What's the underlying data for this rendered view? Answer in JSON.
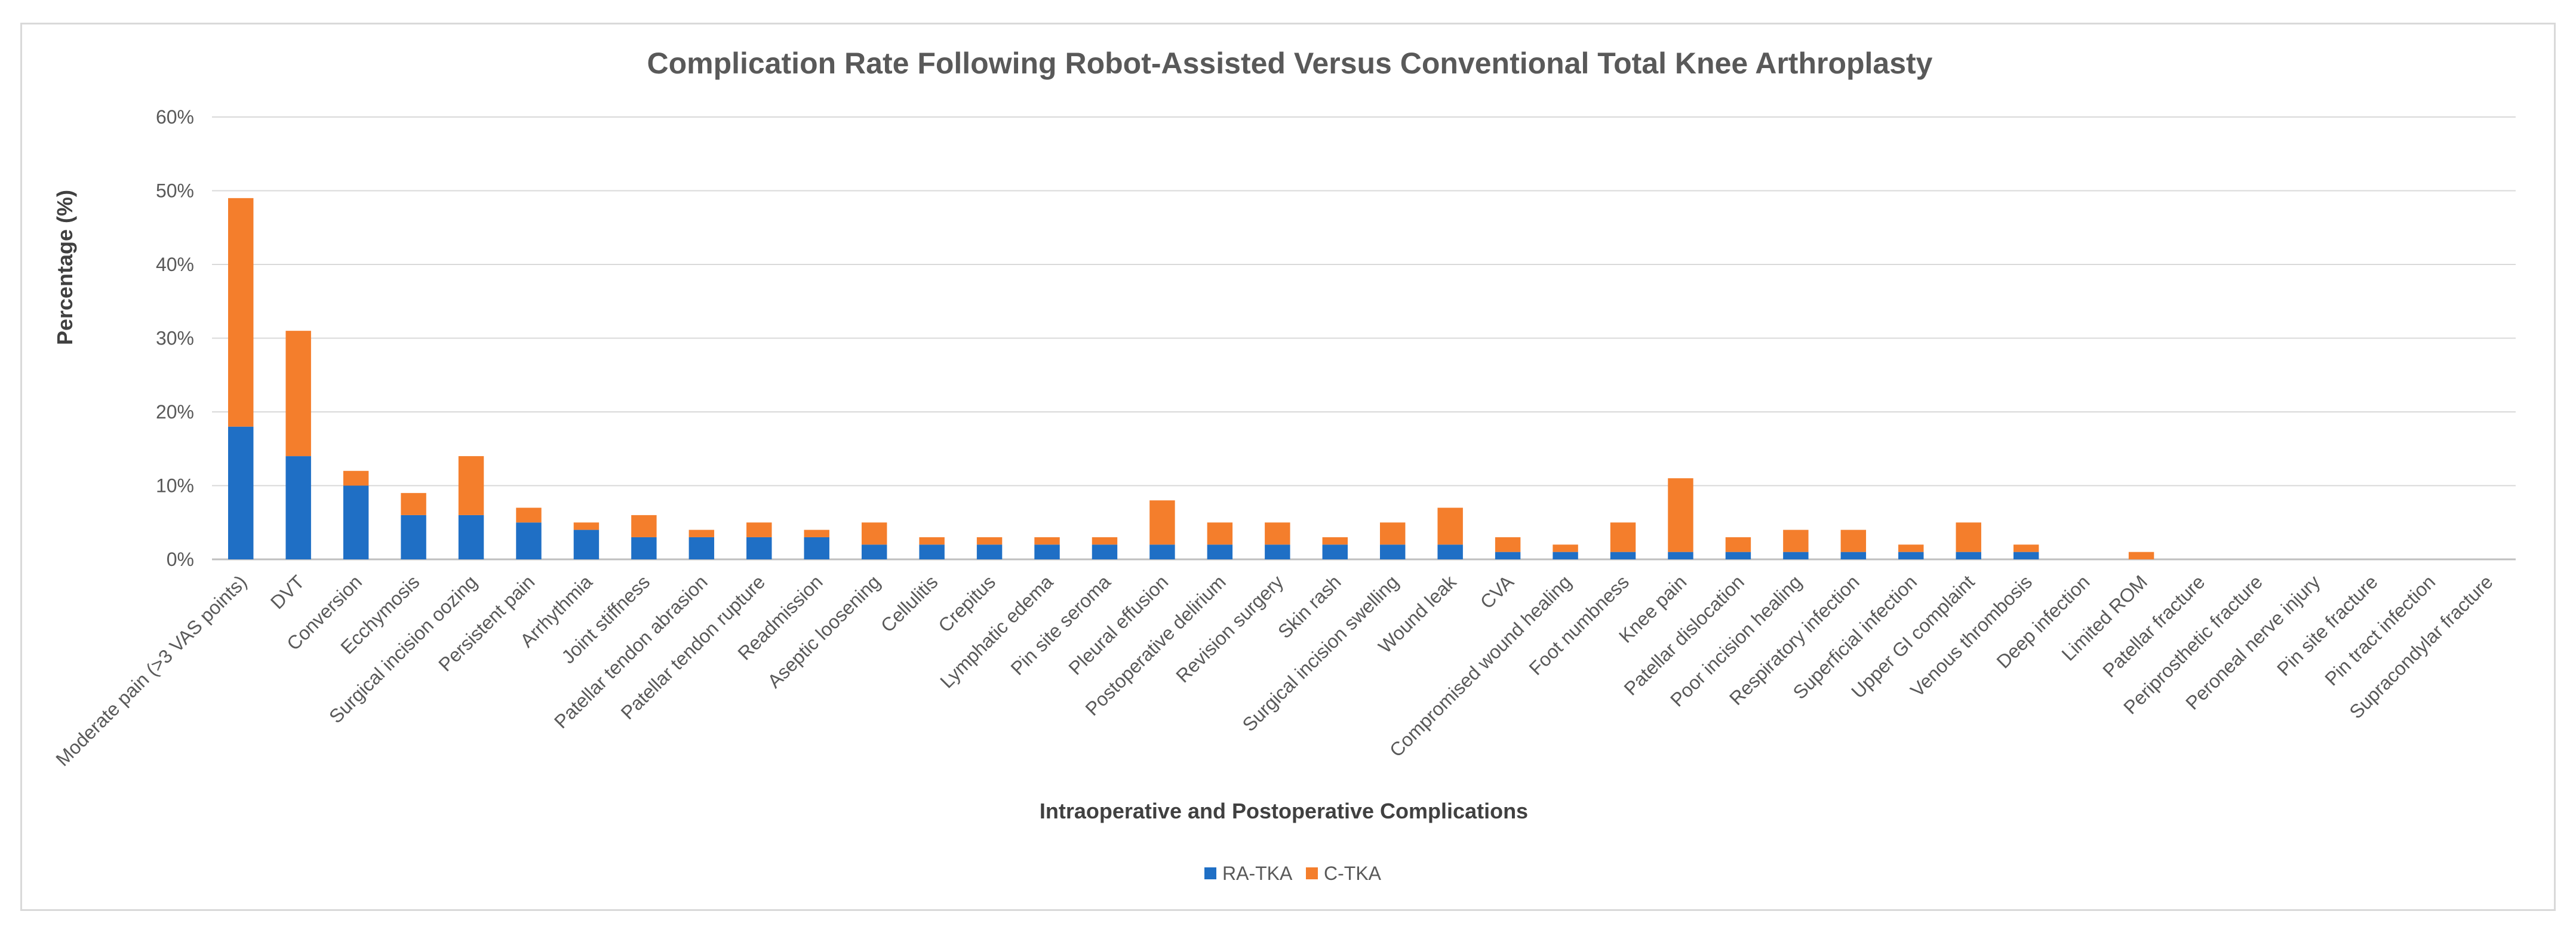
{
  "chart_data": {
    "type": "bar",
    "stacked": true,
    "title": "Complication Rate Following Robot-Assisted Versus Conventional Total Knee Arthroplasty",
    "xlabel": "Intraoperative and Postoperative Complications",
    "ylabel": "Percentage (%)",
    "ylim": [
      0,
      60
    ],
    "yticks": [
      "0%",
      "10%",
      "20%",
      "30%",
      "40%",
      "50%",
      "60%"
    ],
    "grid": true,
    "legend_position": "bottom",
    "categories": [
      "Moderate pain (>3 VAS points)",
      "DVT",
      "Conversion",
      "Ecchymosis",
      "Surgical incision oozing",
      "Persistent pain",
      "Arrhythmia",
      "Joint stiffness",
      "Patellar tendon abrasion",
      "Patellar tendon rupture",
      "Readmission",
      "Aseptic loosening",
      "Cellulitis",
      "Crepitus",
      "Lymphatic edema",
      "Pin site seroma",
      "Pleural effusion",
      "Postoperative delirium",
      "Revision surgery",
      "Skin rash",
      "Surgical incision swelling",
      "Wound leak",
      "CVA",
      "Compromised wound healing",
      "Foot numbness",
      "Knee pain",
      "Patellar dislocation",
      "Poor incision healing",
      "Respiratory infection",
      "Superficial infection",
      "Upper GI complaint",
      "Venous thrombosis",
      "Deep infection",
      "Limited ROM",
      "Patellar fracture",
      "Periprosthetic fracture",
      "Peroneal nerve injury",
      "Pin site fracture",
      "Pin tract infection",
      "Supracondylar fracture"
    ],
    "series": [
      {
        "name": "RA-TKA",
        "color": "#1f6fc5",
        "values": [
          18,
          14,
          10,
          6,
          6,
          5,
          4,
          3,
          3,
          3,
          3,
          2,
          2,
          2,
          2,
          2,
          2,
          2,
          2,
          2,
          2,
          2,
          1,
          1,
          1,
          1,
          1,
          1,
          1,
          1,
          1,
          1,
          0,
          0,
          0,
          0,
          0,
          0,
          0,
          0
        ]
      },
      {
        "name": "C-TKA",
        "color": "#f47e2c",
        "values": [
          31,
          17,
          2,
          3,
          8,
          2,
          1,
          3,
          1,
          2,
          1,
          3,
          1,
          1,
          1,
          1,
          6,
          3,
          3,
          1,
          3,
          5,
          2,
          1,
          4,
          10,
          2,
          3,
          3,
          1,
          4,
          1,
          0,
          1,
          0,
          0,
          0,
          0,
          0,
          0
        ]
      }
    ]
  }
}
